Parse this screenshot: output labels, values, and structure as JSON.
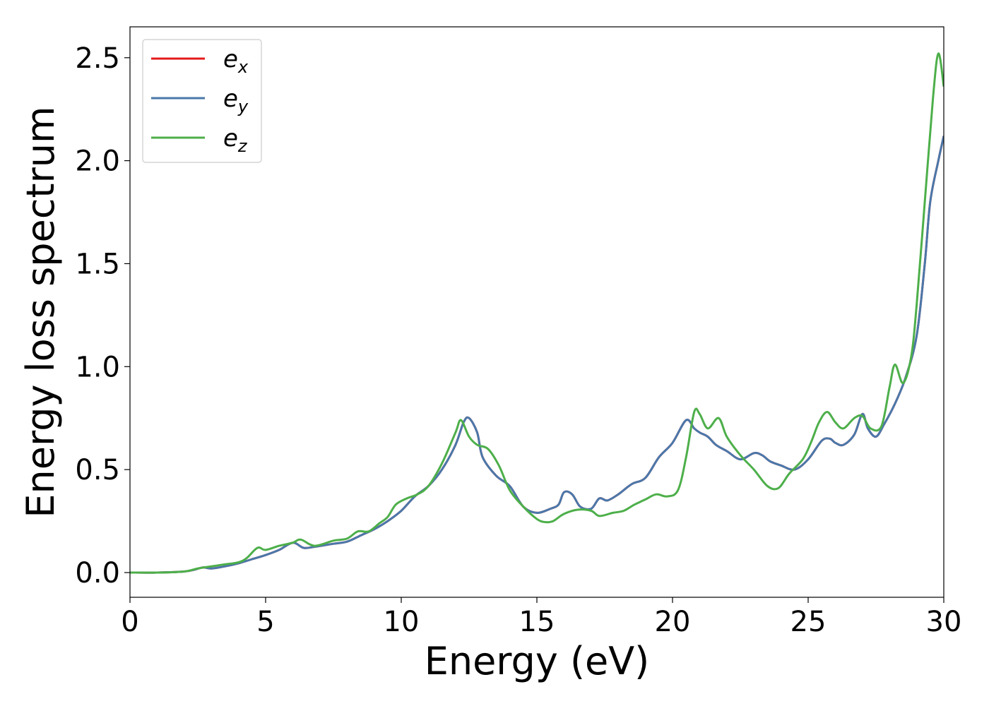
{
  "chart_data": {
    "type": "line",
    "title": "",
    "xlabel": "Energy (eV)",
    "ylabel": "Energy loss spectrum",
    "xlim": [
      0,
      30
    ],
    "ylim": [
      -0.12,
      2.65
    ],
    "xticks": [
      "0",
      "5",
      "10",
      "15",
      "20",
      "25",
      "30"
    ],
    "yticks": [
      "0.0",
      "0.5",
      "1.0",
      "1.5",
      "2.0",
      "2.5"
    ],
    "grid": false,
    "legend_position": "top-left",
    "series": [
      {
        "name": "x",
        "label_base": "e",
        "label_sub": "x",
        "color": "#e41a1c",
        "x": [
          0,
          1,
          2,
          2.4,
          2.7,
          3.0,
          3.5,
          4.0,
          4.5,
          5.0,
          5.5,
          6.0,
          6.4,
          6.8,
          7.5,
          8.0,
          8.5,
          9.0,
          9.5,
          10.0,
          10.5,
          11.0,
          11.5,
          12.0,
          12.3,
          12.5,
          12.8,
          13.0,
          13.5,
          14.0,
          14.5,
          15.0,
          15.5,
          15.8,
          16.0,
          16.3,
          16.6,
          17.0,
          17.3,
          17.6,
          18.0,
          18.5,
          19.0,
          19.5,
          20.0,
          20.5,
          20.8,
          21.0,
          21.3,
          21.6,
          22.0,
          22.5,
          23.0,
          23.3,
          23.6,
          24.0,
          24.5,
          25.0,
          25.5,
          25.8,
          26.0,
          26.3,
          26.7,
          27.0,
          27.2,
          27.5,
          27.8,
          28.2,
          28.6,
          29.0,
          29.3,
          29.5,
          29.8,
          30.0
        ],
        "y": [
          0.0,
          0.0,
          0.005,
          0.015,
          0.025,
          0.02,
          0.03,
          0.045,
          0.065,
          0.085,
          0.11,
          0.145,
          0.12,
          0.125,
          0.14,
          0.15,
          0.18,
          0.21,
          0.25,
          0.3,
          0.37,
          0.42,
          0.5,
          0.62,
          0.73,
          0.75,
          0.68,
          0.56,
          0.47,
          0.42,
          0.32,
          0.29,
          0.31,
          0.33,
          0.39,
          0.38,
          0.32,
          0.31,
          0.36,
          0.35,
          0.38,
          0.43,
          0.46,
          0.56,
          0.63,
          0.74,
          0.7,
          0.68,
          0.66,
          0.62,
          0.59,
          0.55,
          0.58,
          0.57,
          0.54,
          0.52,
          0.5,
          0.55,
          0.64,
          0.65,
          0.63,
          0.62,
          0.67,
          0.77,
          0.7,
          0.66,
          0.72,
          0.82,
          0.95,
          1.15,
          1.5,
          1.8,
          2.0,
          2.12
        ]
      },
      {
        "name": "y",
        "label_base": "e",
        "label_sub": "y",
        "color": "#4a78aa",
        "x": [
          0,
          1,
          2,
          2.4,
          2.7,
          3.0,
          3.5,
          4.0,
          4.5,
          5.0,
          5.5,
          6.0,
          6.4,
          6.8,
          7.5,
          8.0,
          8.5,
          9.0,
          9.5,
          10.0,
          10.5,
          11.0,
          11.5,
          12.0,
          12.3,
          12.5,
          12.8,
          13.0,
          13.5,
          14.0,
          14.5,
          15.0,
          15.5,
          15.8,
          16.0,
          16.3,
          16.6,
          17.0,
          17.3,
          17.6,
          18.0,
          18.5,
          19.0,
          19.5,
          20.0,
          20.5,
          20.8,
          21.0,
          21.3,
          21.6,
          22.0,
          22.5,
          23.0,
          23.3,
          23.6,
          24.0,
          24.5,
          25.0,
          25.5,
          25.8,
          26.0,
          26.3,
          26.7,
          27.0,
          27.2,
          27.5,
          27.8,
          28.2,
          28.6,
          29.0,
          29.3,
          29.5,
          29.8,
          30.0
        ],
        "y": [
          0.0,
          0.0,
          0.005,
          0.015,
          0.025,
          0.02,
          0.03,
          0.045,
          0.065,
          0.085,
          0.11,
          0.145,
          0.12,
          0.125,
          0.14,
          0.15,
          0.18,
          0.21,
          0.25,
          0.3,
          0.37,
          0.42,
          0.5,
          0.62,
          0.73,
          0.75,
          0.68,
          0.56,
          0.47,
          0.42,
          0.32,
          0.29,
          0.31,
          0.33,
          0.39,
          0.38,
          0.32,
          0.31,
          0.36,
          0.35,
          0.38,
          0.43,
          0.46,
          0.56,
          0.63,
          0.74,
          0.7,
          0.68,
          0.66,
          0.62,
          0.59,
          0.55,
          0.58,
          0.57,
          0.54,
          0.52,
          0.5,
          0.55,
          0.64,
          0.65,
          0.63,
          0.62,
          0.67,
          0.77,
          0.7,
          0.66,
          0.72,
          0.82,
          0.95,
          1.15,
          1.5,
          1.8,
          2.0,
          2.12
        ]
      },
      {
        "name": "z",
        "label_base": "e",
        "label_sub": "z",
        "color": "#4daf4a",
        "x": [
          0,
          1,
          2,
          2.5,
          3.0,
          3.5,
          4.0,
          4.3,
          4.7,
          5.0,
          5.5,
          6.0,
          6.3,
          6.8,
          7.5,
          8.0,
          8.4,
          8.8,
          9.2,
          9.5,
          9.8,
          10.2,
          10.6,
          11.0,
          11.5,
          12.0,
          12.2,
          12.5,
          12.8,
          13.2,
          13.6,
          14.0,
          14.5,
          15.0,
          15.3,
          15.6,
          16.0,
          16.5,
          17.0,
          17.3,
          17.8,
          18.2,
          18.6,
          19.0,
          19.4,
          19.8,
          20.2,
          20.5,
          20.8,
          21.0,
          21.3,
          21.7,
          22.0,
          22.5,
          23.0,
          23.5,
          23.9,
          24.3,
          24.8,
          25.1,
          25.4,
          25.7,
          26.0,
          26.3,
          26.7,
          27.0,
          27.3,
          27.7,
          28.0,
          28.2,
          28.5,
          28.8,
          29.0,
          29.3,
          29.6,
          29.8,
          30.0
        ],
        "y": [
          0.0,
          0.0,
          0.005,
          0.02,
          0.03,
          0.04,
          0.05,
          0.07,
          0.12,
          0.11,
          0.13,
          0.145,
          0.16,
          0.13,
          0.155,
          0.165,
          0.2,
          0.2,
          0.24,
          0.27,
          0.33,
          0.36,
          0.38,
          0.42,
          0.53,
          0.68,
          0.74,
          0.66,
          0.62,
          0.6,
          0.52,
          0.4,
          0.32,
          0.26,
          0.245,
          0.25,
          0.285,
          0.305,
          0.3,
          0.275,
          0.29,
          0.3,
          0.33,
          0.355,
          0.38,
          0.37,
          0.4,
          0.56,
          0.78,
          0.77,
          0.7,
          0.75,
          0.66,
          0.57,
          0.5,
          0.42,
          0.41,
          0.48,
          0.55,
          0.63,
          0.73,
          0.78,
          0.73,
          0.7,
          0.75,
          0.76,
          0.7,
          0.71,
          0.9,
          1.01,
          0.92,
          1.05,
          1.3,
          1.8,
          2.3,
          2.52,
          2.36
        ]
      }
    ]
  }
}
